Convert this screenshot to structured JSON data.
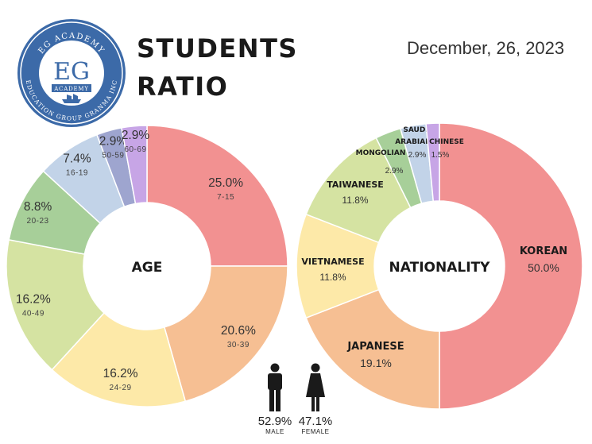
{
  "header": {
    "logo_top": "EG ACADEMY",
    "logo_mark": "EG",
    "logo_sub": "ACADEMY",
    "logo_bottom": "EDUCATION GROUP GRANMA INC",
    "title_line1": "STUDENTS",
    "title_line2": "RATIO",
    "date": "December, 26, 2023"
  },
  "gender": {
    "male": {
      "value": "52.9%",
      "label": "MALE"
    },
    "female": {
      "value": "47.1%",
      "label": "FEMALE"
    }
  },
  "colors": {
    "red": "#f29191",
    "orange": "#f6bf93",
    "yellow": "#fde9a8",
    "lightgreen": "#d5e3a2",
    "green": "#a7cf99",
    "lightblue": "#c2d3e8",
    "periwinkle": "#9ea5cf",
    "lavender": "#c7a5e6",
    "logo_blue": "#3c6aa8"
  },
  "chart_data": [
    {
      "type": "pie",
      "donut": true,
      "center_label": "AGE",
      "start": "top",
      "direction": "clockwise",
      "slices": [
        {
          "label": "7-15",
          "value": 25.0,
          "display": "25.0%",
          "color": "#f29191"
        },
        {
          "label": "30-39",
          "value": 20.6,
          "display": "20.6%",
          "color": "#f6bf93"
        },
        {
          "label": "24-29",
          "value": 16.2,
          "display": "16.2%",
          "color": "#fde9a8"
        },
        {
          "label": "40-49",
          "value": 16.2,
          "display": "16.2%",
          "color": "#d5e3a2"
        },
        {
          "label": "20-23",
          "value": 8.8,
          "display": "8.8%",
          "color": "#a7cf99"
        },
        {
          "label": "16-19",
          "value": 7.4,
          "display": "7.4%",
          "color": "#c2d3e8"
        },
        {
          "label": "50-59",
          "value": 2.9,
          "display": "2.9%",
          "color": "#9ea5cf"
        },
        {
          "label": "60-69",
          "value": 2.9,
          "display": "2.9%",
          "color": "#c7a5e6"
        }
      ]
    },
    {
      "type": "pie",
      "donut": true,
      "center_label": "NATIONALITY",
      "start": "top",
      "direction": "clockwise",
      "slices": [
        {
          "label": "KOREAN",
          "value": 50.0,
          "display": "50.0%",
          "color": "#f29191"
        },
        {
          "label": "JAPANESE",
          "value": 19.1,
          "display": "19.1%",
          "color": "#f6bf93"
        },
        {
          "label": "VIETNAMESE",
          "value": 11.8,
          "display": "11.8%",
          "color": "#fde9a8"
        },
        {
          "label": "TAIWANESE",
          "value": 11.8,
          "display": "11.8%",
          "color": "#d5e3a2"
        },
        {
          "label": "MONGOLIAN",
          "value": 2.9,
          "display": "2.9%",
          "color": "#a7cf99"
        },
        {
          "label": "SAUDI ARABIAN",
          "value": 2.9,
          "display": "2.9%",
          "color": "#c2d3e8"
        },
        {
          "label": "CHINESE",
          "value": 1.5,
          "display": "1.5%",
          "color": "#c7a5e6"
        }
      ]
    }
  ]
}
